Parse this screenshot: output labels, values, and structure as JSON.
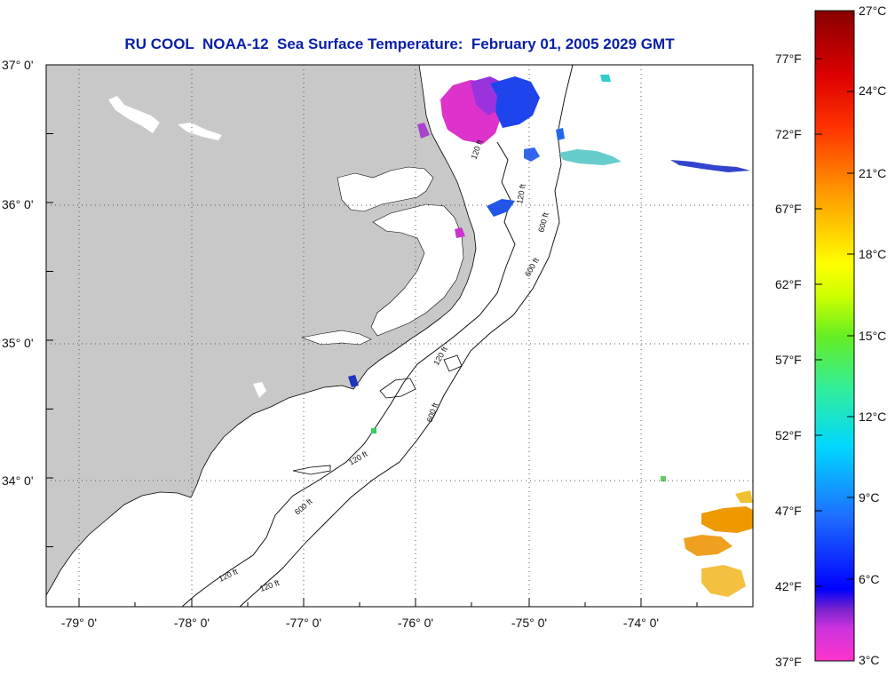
{
  "title": "RU COOL  NOAA-12  Sea Surface Temperature:  February 01, 2005 2029 GMT",
  "lon_ticks": [
    "-79° 0'",
    "-78° 0'",
    "-77° 0'",
    "-76° 0'",
    "-75° 0'",
    "-74° 0'"
  ],
  "lat_ticks": [
    "37° 0'",
    "36° 0'",
    "35° 0'",
    "34° 0'"
  ],
  "colorbar": {
    "celsius_labels": [
      "27°C",
      "24°C",
      "21°C",
      "18°C",
      "15°C",
      "12°C",
      "9°C",
      "6°C",
      "3°C"
    ],
    "fahrenheit_labels": [
      "77°F",
      "72°F",
      "67°F",
      "62°F",
      "57°F",
      "52°F",
      "47°F",
      "42°F",
      "37°F"
    ],
    "colors": [
      "#ff33cc",
      "#cc33dd",
      "#7722cc",
      "#1a1ad6",
      "#0000ff",
      "#1e6cff",
      "#00b0ff",
      "#00e5e5",
      "#33ee99",
      "#55ee33",
      "#aaff00",
      "#ffff00",
      "#ffcc00",
      "#ff9900",
      "#ff6600",
      "#ff2200",
      "#dd0000",
      "#990000"
    ]
  },
  "contour_labels": [
    "120 ft",
    "600 ft",
    "120 ft",
    "600 ft",
    "120 ft",
    "120 ft",
    "600 ft",
    "120 ft",
    "120 ft",
    "600 ft"
  ],
  "colors": {
    "land": "#c8c8c8",
    "water": "#ffffff",
    "title": "#0a1fa8",
    "grid": "#333333"
  }
}
